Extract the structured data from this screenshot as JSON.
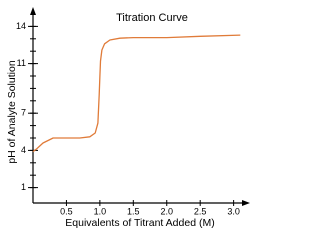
{
  "chart_data": {
    "type": "line",
    "title": "Titration Curve",
    "x_label": "Equivalents of Titrant Added (M)",
    "y_label": "pH of Analyte Solution",
    "x": [
      0.0,
      0.05,
      0.15,
      0.3,
      0.5,
      0.7,
      0.85,
      0.93,
      0.97,
      0.99,
      1.0,
      1.01,
      1.03,
      1.07,
      1.15,
      1.3,
      1.5,
      2.0,
      2.5,
      3.1
    ],
    "series": [
      {
        "name": "pH",
        "color": "#e07b39",
        "values": [
          3.9,
          4.1,
          4.6,
          5.0,
          5.0,
          5.0,
          5.1,
          5.4,
          6.2,
          8.5,
          10.0,
          11.2,
          12.1,
          12.6,
          12.9,
          13.05,
          13.1,
          13.1,
          13.2,
          13.3
        ]
      }
    ],
    "xlim": [
      0,
      3.2
    ],
    "ylim": [
      0,
      15
    ],
    "xticks": [
      0.5,
      {
        "value": 1.0,
        "label": "1.0"
      },
      1.5,
      {
        "value": 2.0,
        "label": "2.0"
      },
      2.5,
      {
        "value": 3.0,
        "label": "3.0"
      }
    ],
    "yticks": [
      1,
      4,
      7,
      11,
      14
    ],
    "y_minor_ticks": [
      1,
      2,
      3,
      4,
      5,
      6,
      7,
      8,
      9,
      10,
      11,
      12,
      13,
      14
    ]
  }
}
